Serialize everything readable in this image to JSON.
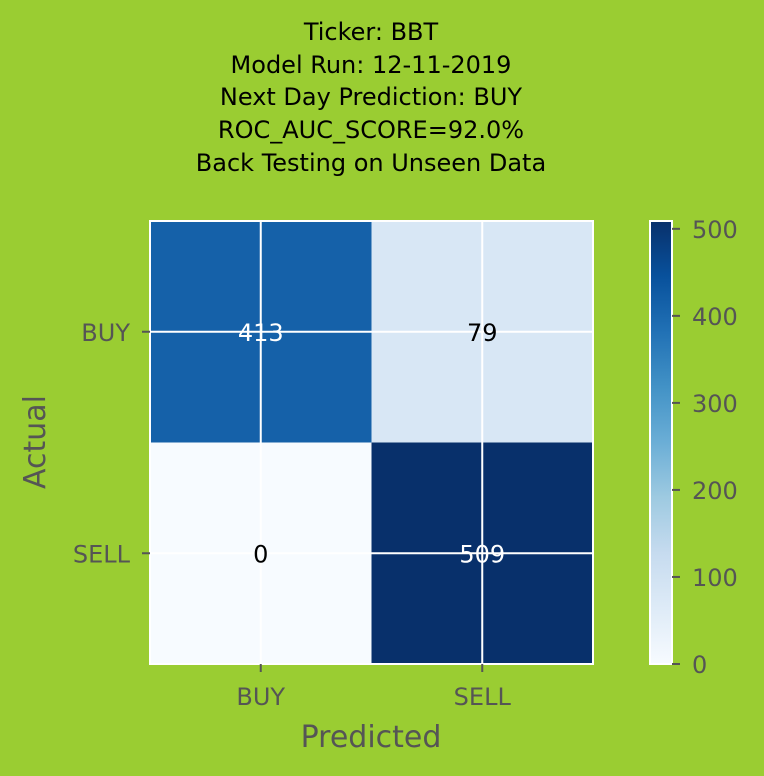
{
  "chart_data": {
    "type": "heatmap",
    "title_lines": [
      "Ticker: BBT",
      "Model Run: 12-11-2019",
      "Next Day Prediction: BUY",
      "ROC_AUC_SCORE=92.0%",
      "Back Testing on Unseen Data"
    ],
    "xlabel": "Predicted",
    "ylabel": "Actual",
    "x_categories": [
      "BUY",
      "SELL"
    ],
    "y_categories": [
      "BUY",
      "SELL"
    ],
    "matrix": [
      [
        413,
        79
      ],
      [
        0,
        509
      ]
    ],
    "colorbar": {
      "min": 0,
      "max": 509,
      "ticks": [
        0,
        100,
        200,
        300,
        400,
        500
      ],
      "colormap": "Blues"
    },
    "grid": true
  },
  "colors": {
    "background": "#9acd32",
    "axis_text": "#555555",
    "cell_text_dark": "#000000",
    "cell_text_light": "#ffffff"
  }
}
